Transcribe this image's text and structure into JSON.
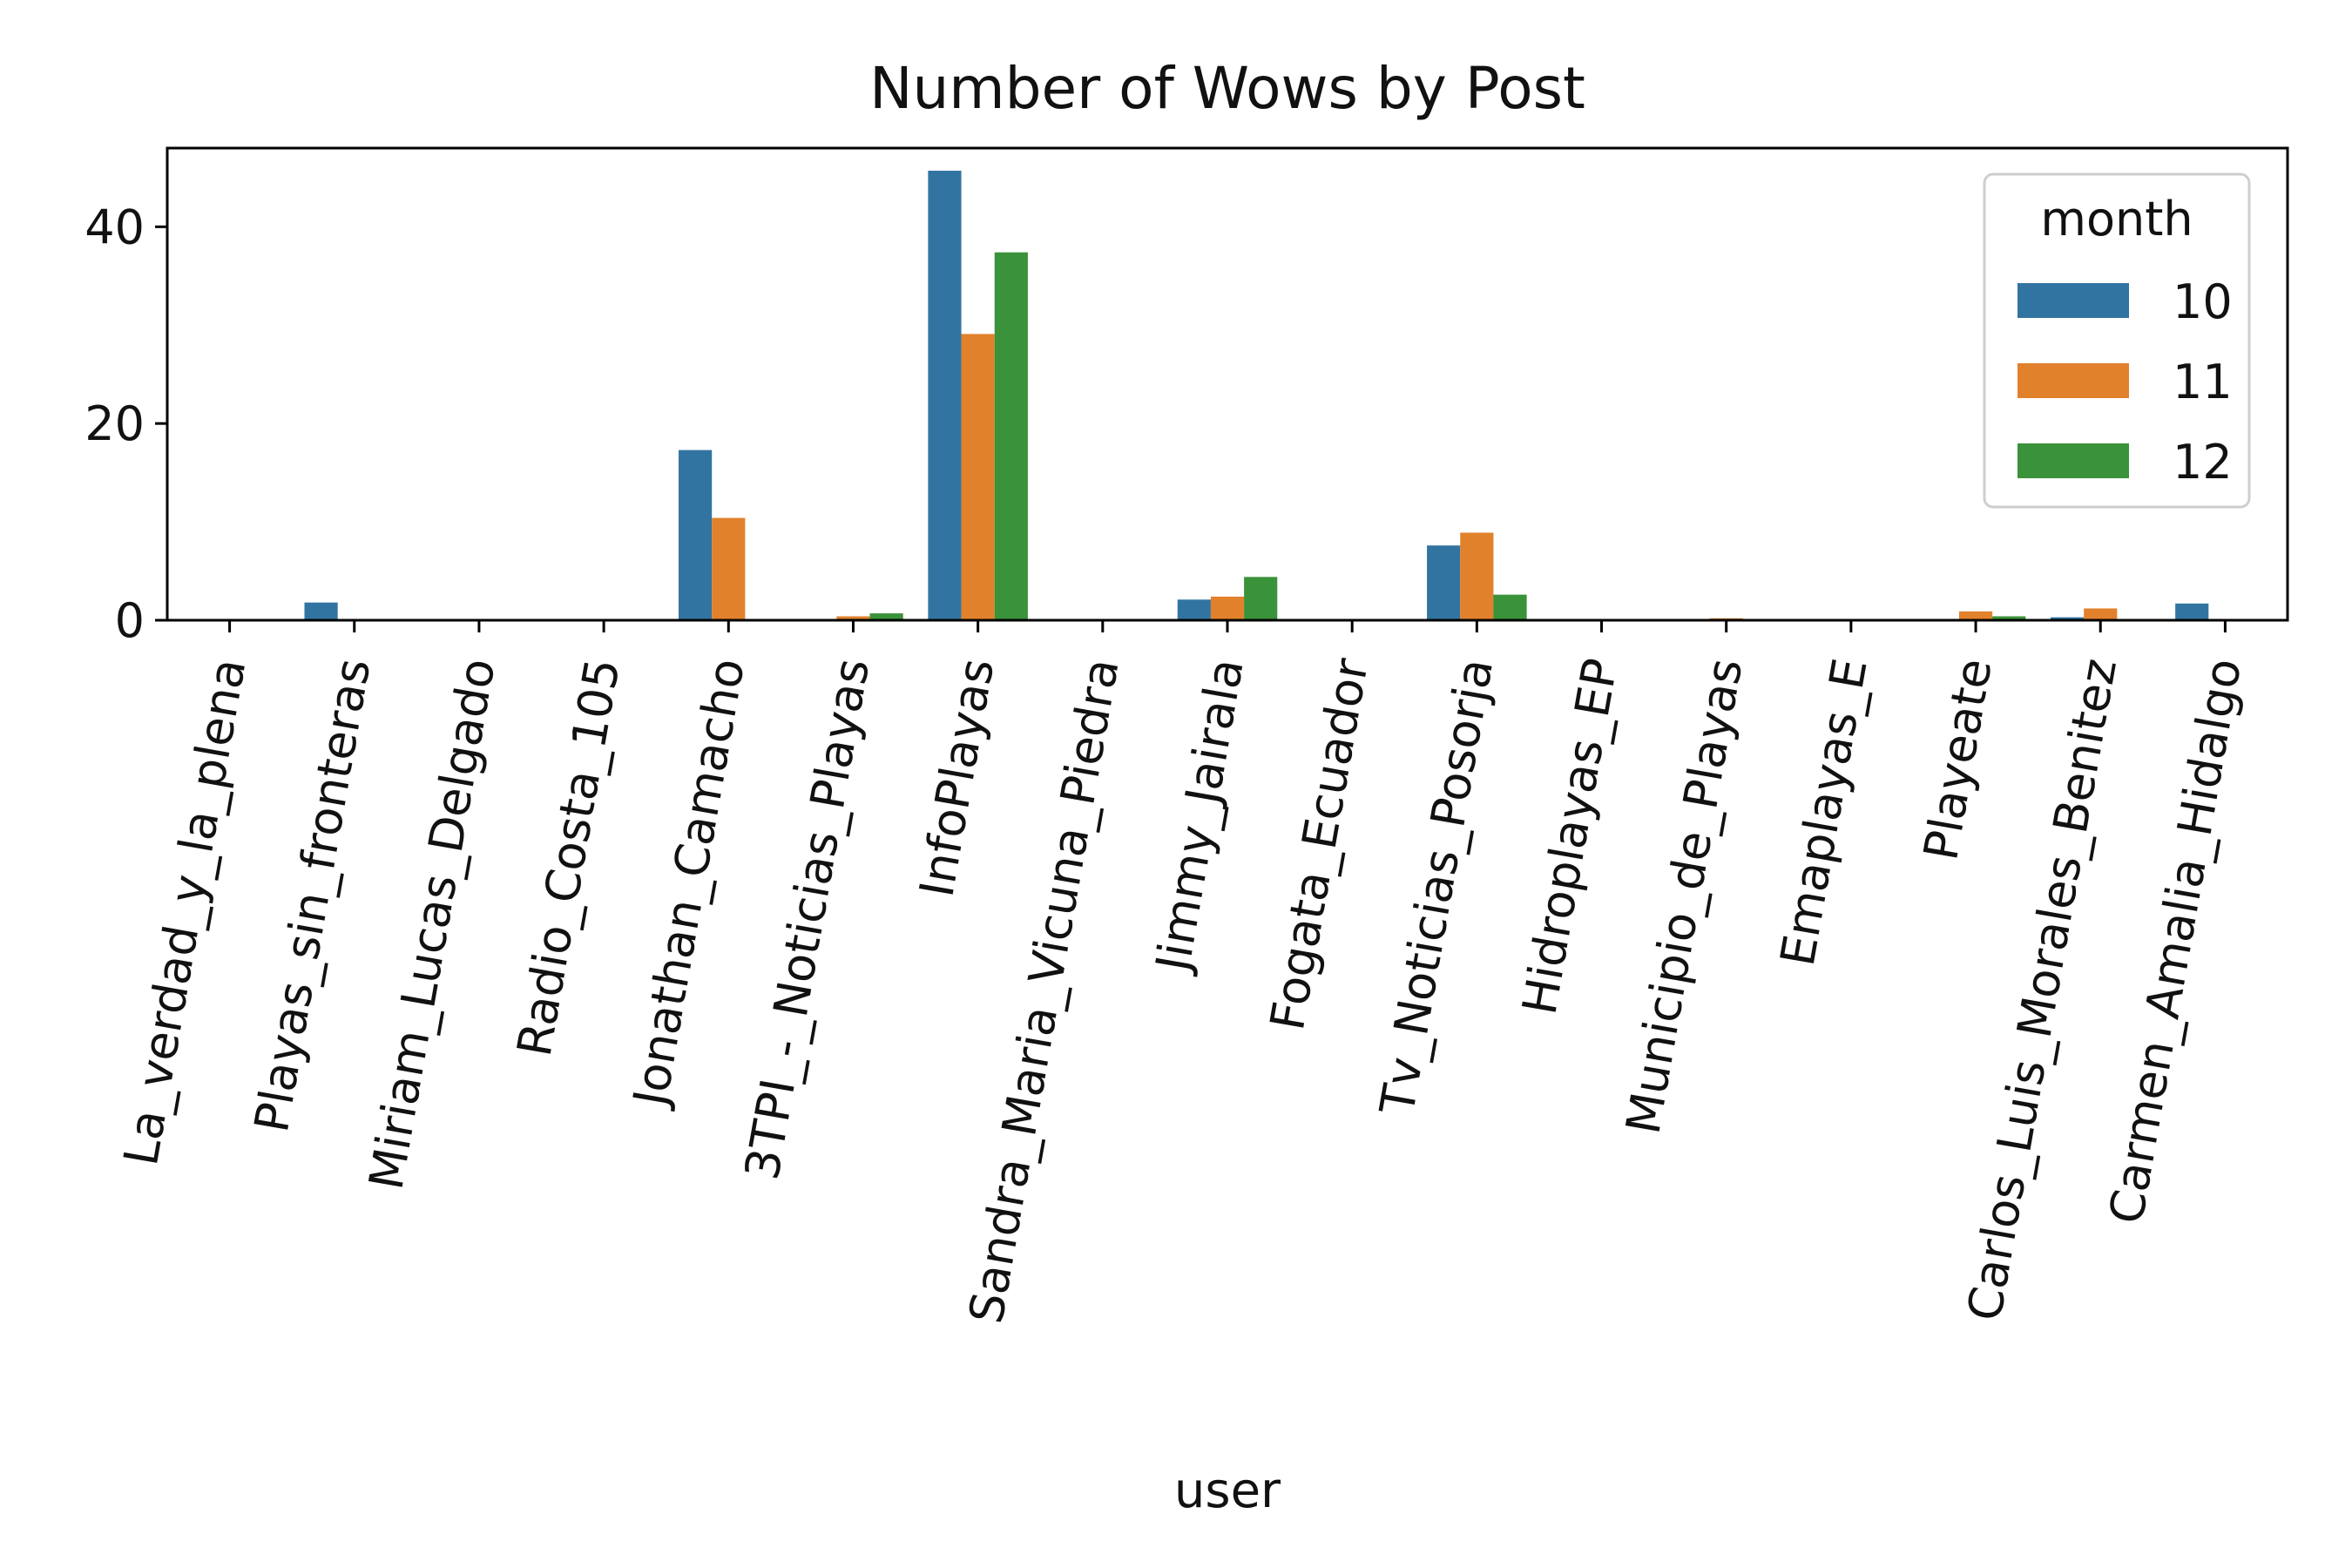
{
  "chart_data": {
    "type": "bar",
    "title": "Number of Wows by Post",
    "xlabel": "user",
    "ylabel": "",
    "ylim": [
      0,
      48
    ],
    "yticks": [
      0,
      20,
      40
    ],
    "grid": false,
    "legend": {
      "title": "month",
      "placement": "top-right"
    },
    "categories": [
      "La_verdad_y_la_plena",
      "Playas_sin_fronteras",
      "Miriam_Lucas_Delgado",
      "Radio_Costa_105",
      "Jonathan_Camacho",
      "3TPI_-_Noticias_Playas",
      "InfoPlayas",
      "Sandra_Maria_Vicuna_Piedra",
      "Jimmy_Jairala",
      "Fogata_Ecuador",
      "Tv_Noticias_Posorja",
      "Hidroplayas_EP",
      "Municipio_de_Playas",
      "Emaplayas_E",
      "Playeate",
      "Carlos_Luis_Morales_Benitez",
      "Carmen_Amalia_Hidalgo"
    ],
    "series": [
      {
        "name": "10",
        "color": "#3274a1",
        "values": [
          0,
          1.8,
          0,
          0,
          17.3,
          0,
          45.7,
          0,
          2.1,
          0,
          7.6,
          0,
          0.1,
          0,
          0,
          0.3,
          1.7
        ]
      },
      {
        "name": "11",
        "color": "#e1812c",
        "values": [
          0,
          0,
          0,
          0,
          10.4,
          0.4,
          29.1,
          0,
          2.4,
          0,
          8.9,
          0,
          0.2,
          0,
          0.9,
          1.2,
          0
        ]
      },
      {
        "name": "12",
        "color": "#3a923a",
        "values": [
          0,
          0,
          0,
          0,
          0,
          0.7,
          37.4,
          0,
          4.4,
          0,
          2.6,
          0,
          0,
          0,
          0.4,
          0,
          0
        ]
      }
    ]
  }
}
